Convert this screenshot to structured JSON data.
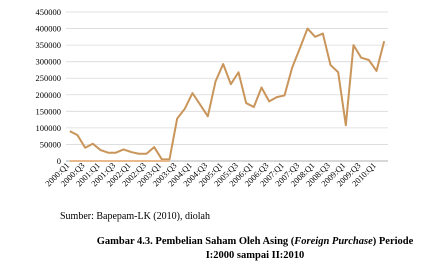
{
  "chart_data": {
    "type": "line",
    "categories": [
      "2000:Q1",
      null,
      "2000:Q3",
      null,
      "2001:Q1",
      null,
      "2001:Q3",
      null,
      "2002:Q1",
      null,
      "2002:Q3",
      null,
      "2003:Q1",
      null,
      "2003:Q3",
      null,
      "2004:Q1",
      null,
      "2004:Q3",
      null,
      "2005:Q1",
      null,
      "2005:Q3",
      null,
      "2006:Q1",
      null,
      "2006:Q3",
      null,
      "2007:Q1",
      null,
      "2007:Q3",
      null,
      "2008:Q1",
      null,
      "2008:Q3",
      null,
      "2009:Q1",
      null,
      "2009:Q3",
      null,
      "2010:Q1",
      null
    ],
    "series": [
      {
        "color": "#c9955a",
        "values": [
          90000,
          78000,
          40000,
          52000,
          33000,
          25000,
          25000,
          35000,
          27000,
          22000,
          22000,
          42000,
          5000,
          5000,
          128000,
          158000,
          205000,
          170000,
          135000,
          240000,
          293000,
          232000,
          268000,
          175000,
          163000,
          222000,
          180000,
          193000,
          198000,
          282000,
          340000,
          400000,
          375000,
          385000,
          290000,
          268000,
          108000,
          350000,
          312000,
          305000,
          272000,
          362000
        ]
      },
      {
        "color": "#e8b98a",
        "values": [
          0,
          0,
          0,
          0,
          0,
          0,
          0,
          0,
          0,
          0,
          0,
          0,
          0,
          0,
          null,
          null,
          null,
          null,
          null,
          null,
          null,
          null,
          null,
          null,
          null,
          null,
          null,
          null,
          null,
          null,
          null,
          null,
          null,
          null,
          null,
          null,
          null,
          null,
          null,
          null,
          null,
          null
        ]
      }
    ],
    "ylim": [
      0,
      450000
    ],
    "yticks": [
      0,
      50000,
      100000,
      150000,
      200000,
      250000,
      300000,
      350000,
      400000,
      450000
    ],
    "grid": true
  },
  "source": "Sumber: Bapepam-LK (2010), diolah",
  "caption": {
    "before": "Gambar 4.3. Pembelian Saham Oleh Asing (",
    "italic": "Foreign Purchase",
    "after": ") Periode",
    "line2": "I:2000 sampai II:2010"
  }
}
